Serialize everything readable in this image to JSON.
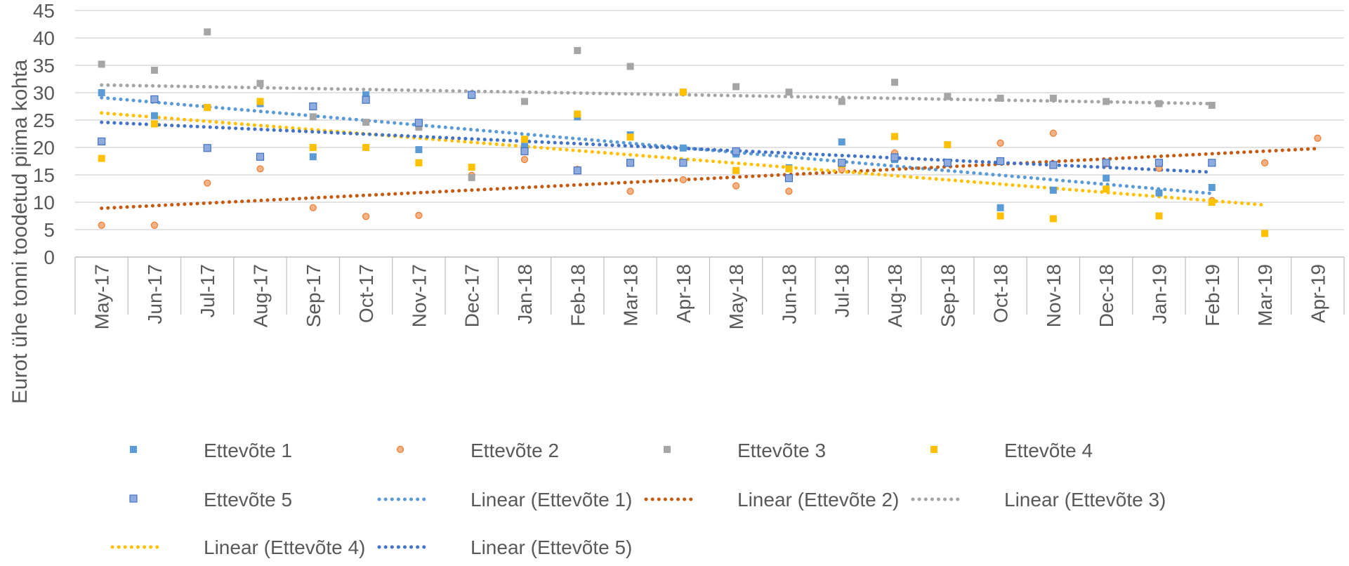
{
  "chart_data": {
    "type": "scatter",
    "ylabel": "Eurot ühe tonni toodetud piima kohta",
    "xlabel": "",
    "ylim": [
      0,
      45
    ],
    "yticks": [
      0,
      5,
      10,
      15,
      20,
      25,
      30,
      35,
      40,
      45
    ],
    "grid": "horizontal",
    "legend_position": "bottom",
    "categories": [
      "May-17",
      "Jun-17",
      "Jul-17",
      "Aug-17",
      "Sep-17",
      "Oct-17",
      "Nov-17",
      "Dec-17",
      "Jan-18",
      "Feb-18",
      "Mar-18",
      "Apr-18",
      "May-18",
      "Jun-18",
      "Jul-18",
      "Aug-18",
      "Sep-18",
      "Oct-18",
      "Nov-18",
      "Dec-18",
      "Jan-19",
      "Feb-19",
      "Mar-19",
      "Apr-19"
    ],
    "series": [
      {
        "name": "Ettevõte 1",
        "marker": "square",
        "color": "#5B9BD5",
        "values": [
          30,
          25.8,
          27.3,
          28,
          18.3,
          29.6,
          19.6,
          29.5,
          20.2,
          25.6,
          22.3,
          19.9,
          18.8,
          16.3,
          21,
          17.8,
          17.3,
          9,
          12.2,
          14.4,
          11.7,
          12.7,
          null,
          null
        ]
      },
      {
        "name": "Ettevõte 2",
        "marker": "circle",
        "color": "#ED7D31",
        "values": [
          5.8,
          5.8,
          13.5,
          16.1,
          9,
          7.4,
          7.6,
          14.9,
          17.8,
          16,
          12,
          14.1,
          13,
          12,
          16,
          19,
          17.1,
          20.8,
          22.6,
          17,
          16.2,
          10.3,
          17.2,
          21.7
        ]
      },
      {
        "name": "Ettevõte 3",
        "marker": "square",
        "color": "#A5A5A5",
        "values": [
          35.2,
          34.1,
          41.1,
          31.7,
          25.6,
          24.6,
          23.7,
          14.5,
          28.4,
          37.7,
          34.8,
          30.1,
          31.1,
          30.1,
          28.4,
          31.9,
          29.3,
          29,
          29,
          28.4,
          28,
          27.7,
          null,
          null
        ]
      },
      {
        "name": "Ettevõte 4",
        "marker": "square",
        "color": "#FFC000",
        "values": [
          18,
          24.3,
          27.3,
          28.4,
          20,
          20,
          17.2,
          16.4,
          21.5,
          26.1,
          21.9,
          30.1,
          15.8,
          16.1,
          16.9,
          22,
          20.5,
          7.5,
          7,
          12.4,
          7.5,
          10,
          4.3,
          null
        ]
      },
      {
        "name": "Ettevõte 5",
        "marker": "square-dot",
        "color": "#4472C4",
        "values": [
          21.1,
          28.8,
          19.9,
          18.3,
          27.5,
          28.7,
          24.5,
          29.6,
          19.3,
          15.8,
          17.2,
          17.2,
          19.3,
          14.4,
          17.2,
          18.2,
          17.2,
          17.5,
          16.8,
          17.2,
          17.2,
          17.2,
          null,
          null
        ]
      }
    ],
    "trendlines": [
      {
        "name": "Linear (Ettevõte 1)",
        "color": "#5B9BD5",
        "start": 29.1,
        "end": 11.6,
        "from": "May-17",
        "to": "Feb-19"
      },
      {
        "name": "Linear (Ettevõte 2)",
        "color": "#C55A11",
        "start": 8.9,
        "end": 19.8,
        "from": "May-17",
        "to": "Apr-19"
      },
      {
        "name": "Linear (Ettevõte 3)",
        "color": "#A5A5A5",
        "start": 31.4,
        "end": 28,
        "from": "May-17",
        "to": "Feb-19"
      },
      {
        "name": "Linear (Ettevõte 4)",
        "color": "#FFC000",
        "start": 26.3,
        "end": 9.5,
        "from": "May-17",
        "to": "Mar-19"
      },
      {
        "name": "Linear (Ettevõte 5)",
        "color": "#4472C4",
        "start": 24.6,
        "end": 15.5,
        "from": "May-17",
        "to": "Feb-19"
      }
    ]
  }
}
